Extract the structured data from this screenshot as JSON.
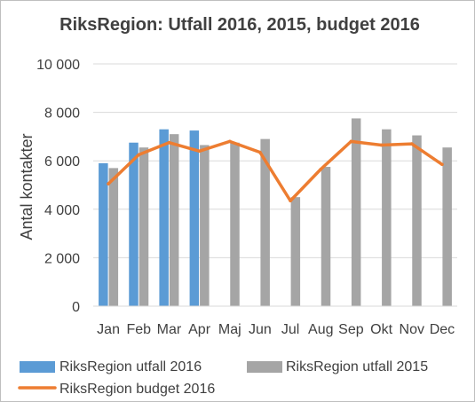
{
  "chart_data": {
    "type": "bar",
    "title": "RiksRegion: Utfall 2016, 2015, budget 2016",
    "ylabel": "Antal kontakter",
    "xlabel": "",
    "ylim": [
      0,
      10000
    ],
    "yticks": [
      0,
      2000,
      4000,
      6000,
      8000,
      10000
    ],
    "ytick_labels": [
      "0",
      "2 000",
      "4 000",
      "6 000",
      "8 000",
      "10 000"
    ],
    "categories": [
      "Jan",
      "Feb",
      "Mar",
      "Apr",
      "Maj",
      "Jun",
      "Jul",
      "Aug",
      "Sep",
      "Okt",
      "Nov",
      "Dec"
    ],
    "grid": "horizontal",
    "legend_position": "bottom",
    "series": [
      {
        "name": "RiksRegion utfall 2016",
        "kind": "bar",
        "color": "#5b9bd5",
        "values": [
          5900,
          6750,
          7300,
          7250,
          null,
          null,
          null,
          null,
          null,
          null,
          null,
          null
        ]
      },
      {
        "name": "RiksRegion utfall 2015",
        "kind": "bar",
        "color": "#a5a5a5",
        "values": [
          5700,
          6550,
          7100,
          6650,
          6750,
          6900,
          4500,
          5750,
          7750,
          7300,
          7050,
          6550
        ]
      },
      {
        "name": "RiksRegion budget 2016",
        "kind": "line",
        "color": "#ed7d31",
        "values": [
          5050,
          6250,
          6750,
          6400,
          6800,
          6350,
          4350,
          5650,
          6800,
          6650,
          6700,
          5850
        ]
      }
    ]
  }
}
